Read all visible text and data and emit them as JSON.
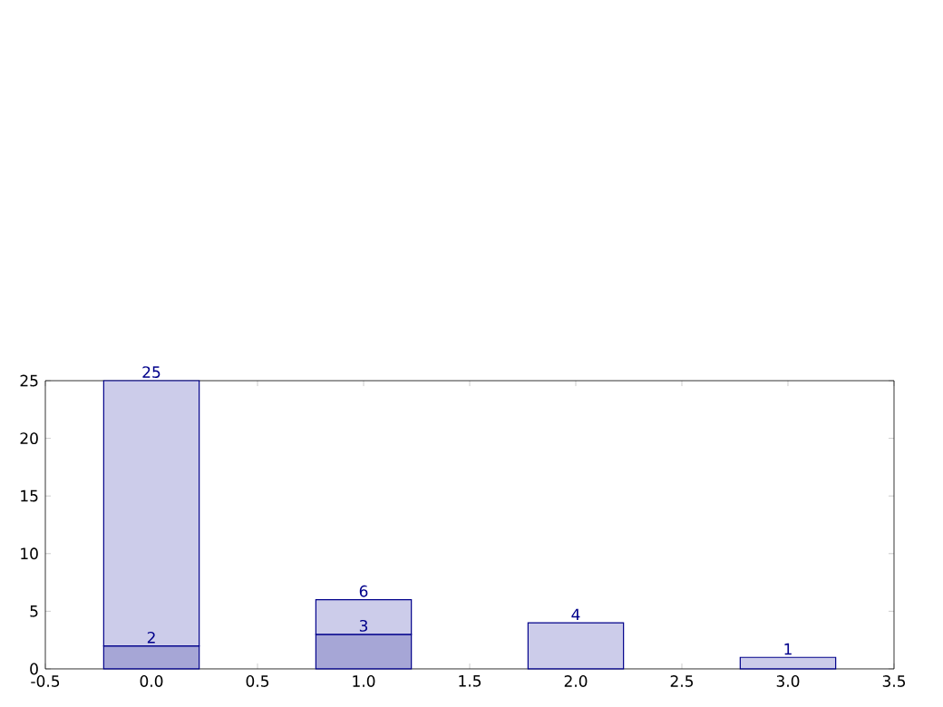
{
  "chart_data": {
    "type": "bar",
    "stacked": true,
    "x": [
      0,
      1,
      2,
      3
    ],
    "series": [
      {
        "color": "#a6a6d6",
        "values": [
          2,
          3,
          null,
          null
        ],
        "value_labels": [
          "2",
          "3",
          null,
          null
        ]
      },
      {
        "color": "#ccccea",
        "values": [
          23,
          3,
          4,
          1
        ]
      }
    ],
    "totals": [
      "25",
      "6",
      "4",
      "1"
    ],
    "xlim": [
      -0.5,
      3.5
    ],
    "ylim": [
      0,
      25
    ],
    "xticks": [
      {
        "value": -0.5,
        "label": "-0.5"
      },
      {
        "value": 0,
        "label": "0.0"
      },
      {
        "value": 0.5,
        "label": "0.5"
      },
      {
        "value": 1,
        "label": "1.0"
      },
      {
        "value": 1.5,
        "label": "1.5"
      },
      {
        "value": 2,
        "label": "2.0"
      },
      {
        "value": 2.5,
        "label": "2.5"
      },
      {
        "value": 3,
        "label": "3.0"
      },
      {
        "value": 3.5,
        "label": "3.5"
      }
    ],
    "yticks": [
      0,
      5,
      10,
      15,
      20,
      25
    ],
    "grid": false
  }
}
